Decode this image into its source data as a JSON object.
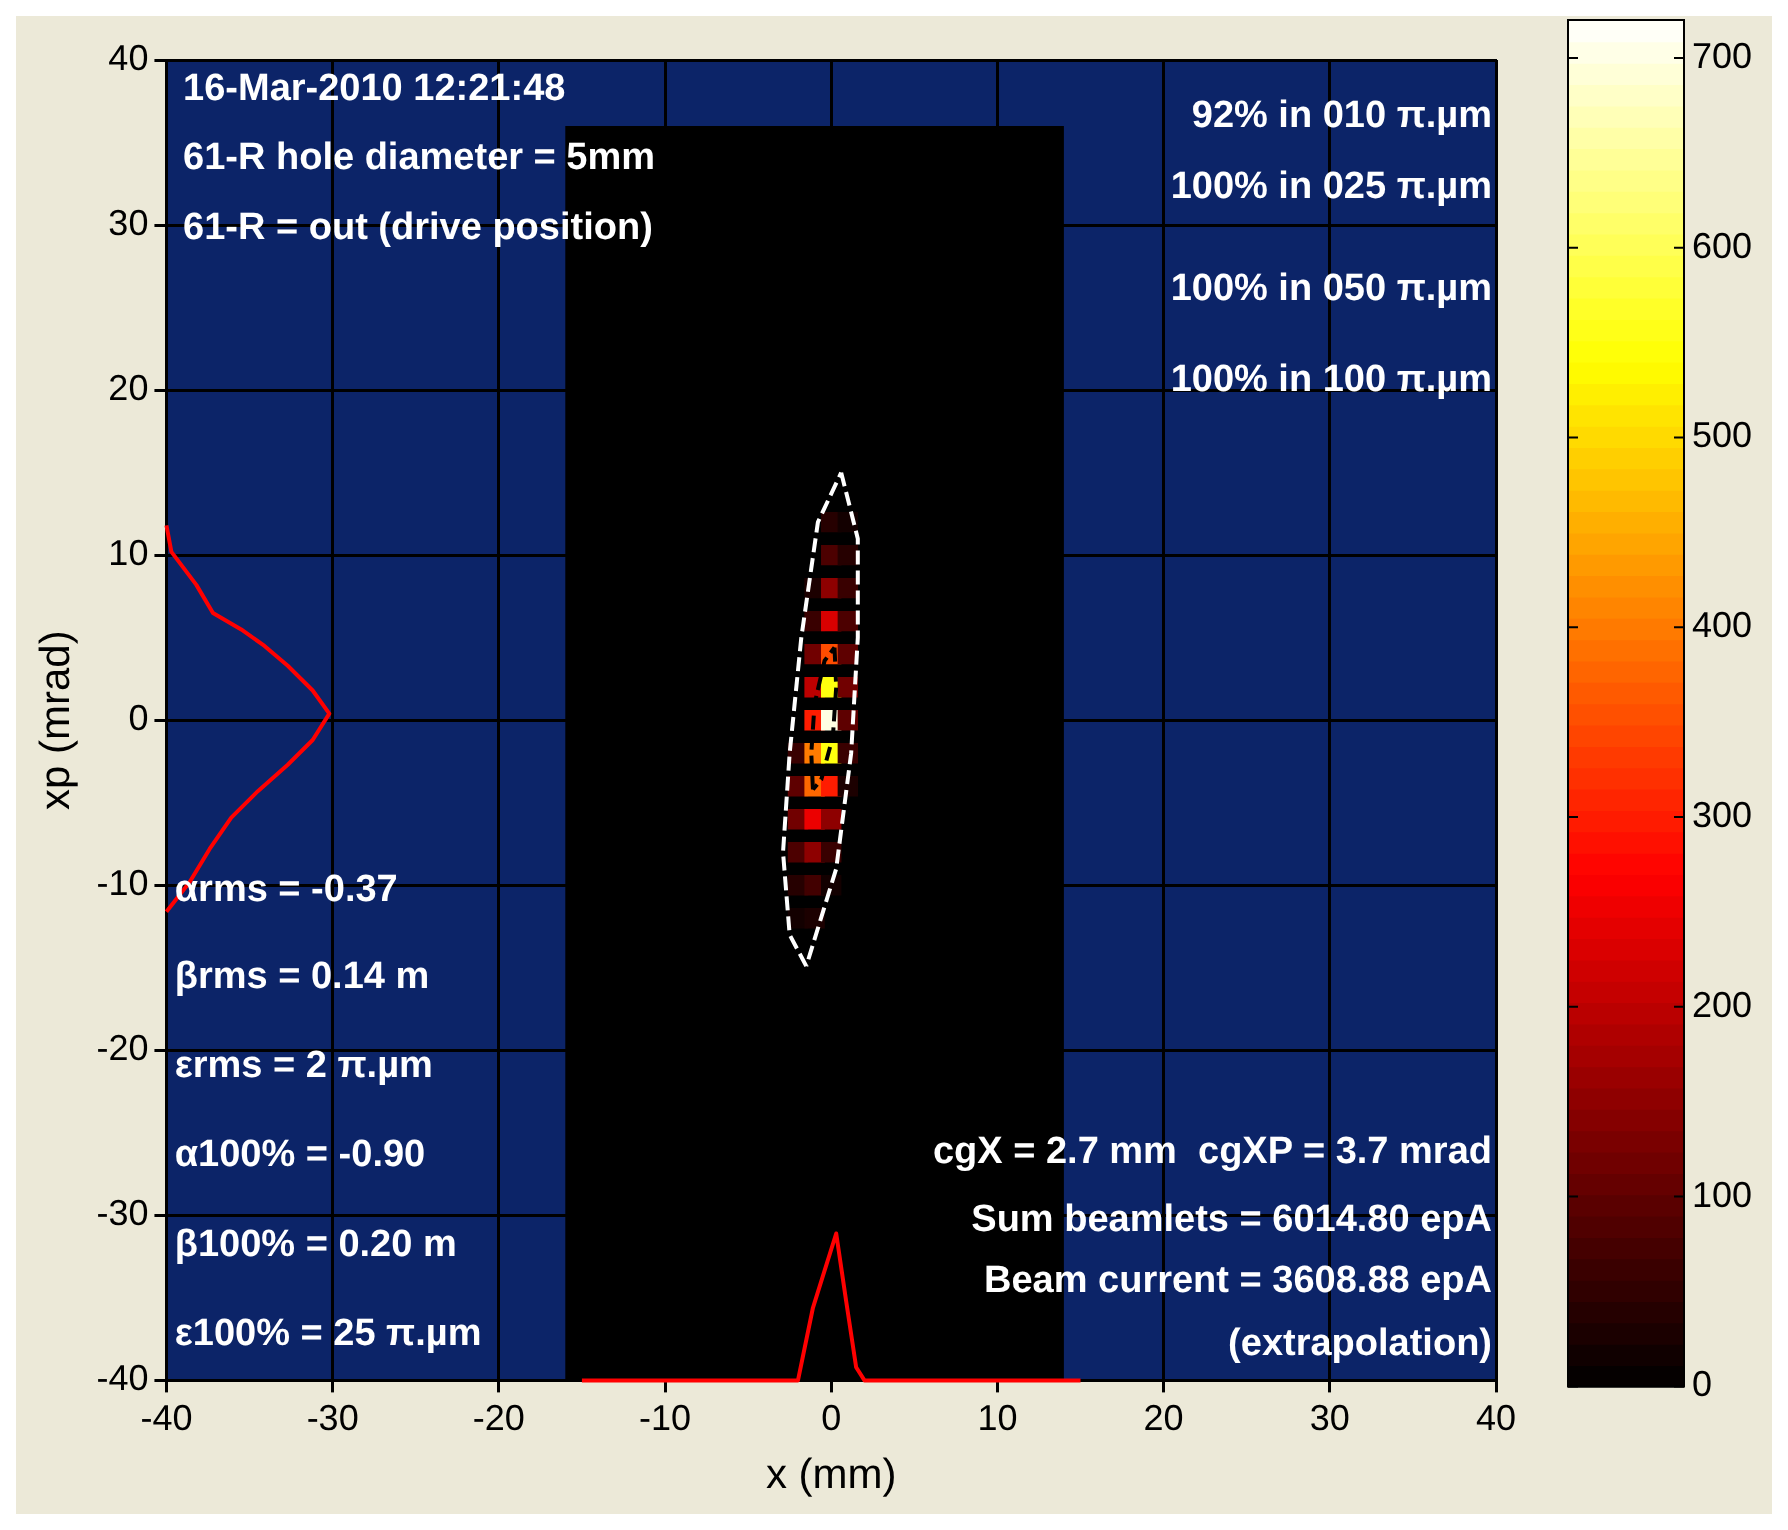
{
  "chart_data": {
    "type": "scatter",
    "xlabel": "x (mm)",
    "ylabel": "xp (mrad)",
    "xlim": [
      -40,
      40
    ],
    "xticks": [
      -40,
      -30,
      -20,
      -10,
      0,
      10,
      20,
      30,
      40
    ],
    "ylim": [
      -40,
      40
    ],
    "yticks": [
      -40,
      -30,
      -20,
      -10,
      0,
      10,
      20,
      30,
      40
    ],
    "grid": true,
    "marker": "square",
    "clim": [
      0,
      720
    ],
    "cticks": [
      0,
      100,
      200,
      300,
      400,
      500,
      600,
      700
    ],
    "bands": [
      {
        "axis": "x",
        "from": -40,
        "to": -16,
        "color": "#0c2468"
      },
      {
        "axis": "x",
        "from": 14,
        "to": 40,
        "color": "#0c2468"
      },
      {
        "axis": "y",
        "from": 36,
        "to": 40,
        "color": "#0c2468"
      }
    ],
    "series": [
      {
        "type": "scatter",
        "x": [
          0,
          1,
          0,
          1,
          -1,
          0,
          1,
          -1,
          0,
          1,
          -1,
          0,
          1,
          -1,
          0,
          1,
          -1,
          0,
          1,
          -2,
          -1,
          0,
          1,
          -2,
          -1,
          0,
          1,
          -2,
          -1,
          0,
          -2,
          -1,
          0,
          -2,
          -1,
          0,
          -2,
          -1
        ],
        "values": [
          12,
          12,
          10,
          10,
          8,
          8,
          8,
          6,
          6,
          6,
          4,
          4,
          4,
          2,
          2,
          2,
          0,
          0,
          0,
          -2,
          -2,
          -2,
          -2,
          -4,
          -4,
          -4,
          -4,
          -6,
          -6,
          -6,
          -8,
          -8,
          -8,
          -10,
          -10,
          -10,
          -12,
          -12
        ],
        "cvalues": [
          40,
          20,
          80,
          40,
          30,
          150,
          60,
          60,
          230,
          80,
          120,
          350,
          100,
          200,
          550,
          120,
          300,
          700,
          100,
          60,
          400,
          550,
          60,
          100,
          380,
          300,
          30,
          120,
          250,
          150,
          80,
          150,
          60,
          40,
          70,
          20,
          20,
          30
        ],
        "colors": [
          "#260000",
          "#130000",
          "#4c0000",
          "#260000",
          "#1c0000",
          "#8e0000",
          "#390000",
          "#390000",
          "#d90000",
          "#4c0000",
          "#710000",
          "#ff4c00",
          "#5e0000",
          "#bd0000",
          "#ffff0e",
          "#710000",
          "#ff1c00",
          "#ffffe3",
          "#5e0000",
          "#390000",
          "#ff7b00",
          "#ffff0e",
          "#390000",
          "#5e0000",
          "#ff6800",
          "#ff1c00",
          "#1c0000",
          "#710000",
          "#ec0000",
          "#8e0000",
          "#4c0000",
          "#8e0000",
          "#390000",
          "#260000",
          "#420000",
          "#130000",
          "#130000",
          "#1c0000"
        ]
      },
      {
        "type": "line",
        "marker": "none",
        "color": "#ffffff",
        "line_style": "dashed",
        "x": [
          0.6,
          1.6,
          1.6,
          1.2,
          0.3,
          -1.5
        ],
        "values": [
          15,
          11,
          5,
          -2,
          -9,
          -14.9
        ]
      },
      {
        "type": "line",
        "marker": "none",
        "color": "#ffffff",
        "line_style": "dashed",
        "x": [
          -1.5,
          -2.5,
          -2.9,
          -2.5,
          -1.8,
          -0.8,
          0.6
        ],
        "values": [
          -14.9,
          -13,
          -8,
          -2,
          5,
          12,
          15
        ]
      },
      {
        "type": "line",
        "marker": "none",
        "color": "#000000",
        "line_style": "dashed",
        "x": [
          0.2,
          0.3,
          0.1,
          -0.6,
          -1.1
        ],
        "values": [
          4.4,
          2,
          -1,
          -3.6,
          -4.2
        ]
      },
      {
        "type": "line",
        "marker": "none",
        "color": "#000000",
        "line_style": "dashed",
        "x": [
          -1.1,
          -1.2,
          -1,
          -0.4,
          0.2
        ],
        "values": [
          -4.2,
          -2,
          1,
          3.6,
          4.4
        ]
      },
      {
        "type": "line",
        "marker": "none",
        "color": "#ff0000",
        "line_style": "solid",
        "x": [
          -40,
          -39.7,
          -38.2,
          -37.2,
          -35.5,
          -34.1,
          -32.7,
          -31.2,
          -30.2,
          -31.2,
          -32.7,
          -34.5,
          -36.1,
          -37.4,
          -38.6,
          -40
        ],
        "values": [
          11.8,
          10.2,
          8.2,
          6.5,
          5.5,
          4.5,
          3.3,
          1.8,
          0.4,
          -1.2,
          -2.7,
          -4.3,
          -5.9,
          -7.8,
          -9.8,
          -11.6
        ]
      },
      {
        "type": "line",
        "marker": "none",
        "color": "#ff0000",
        "line_style": "solid",
        "x": [
          -15,
          -2,
          -1.1,
          0.3,
          0.9,
          1.5,
          2,
          15
        ],
        "values": [
          -40,
          -40,
          -35.6,
          -31.1,
          -35.2,
          -39.2,
          -40,
          -40
        ]
      }
    ],
    "annotations": [
      "16-Mar-2010 12:21:48",
      "61-R hole diameter = 5mm",
      "61-R = out (drive position)",
      "92% in 010 π.µm",
      "100% in 025 π.µm",
      "100% in 050 π.µm",
      "100% in 100 π.µm",
      "αrms = -0.37",
      "βrms = 0.14 m",
      "εrms = 2 π.µm",
      "α100% = -0.90",
      "β100% = 0.20 m",
      "ε100% = 25 π.µm",
      "cgX = 2.7 mm  cgXP = 3.7 mrad",
      "Sum beamlets = 6014.80 epA",
      "Beam current = 3608.88 epA",
      "(extrapolation)"
    ]
  }
}
